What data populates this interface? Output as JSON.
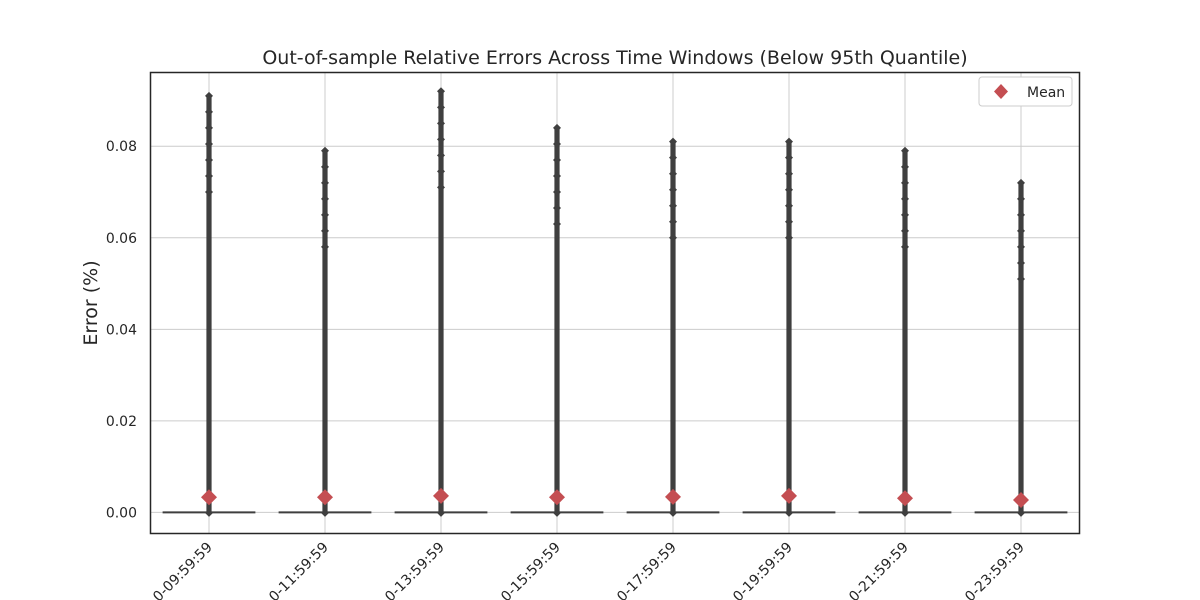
{
  "chart_data": {
    "type": "box",
    "title": "Out-of-sample Relative Errors Across Time Windows (Below 95th Quantile)",
    "xlabel": "",
    "ylabel": "Error (%)",
    "ylim": [
      -0.0045,
      0.096
    ],
    "yticks": [
      0.0,
      0.02,
      0.04,
      0.06,
      0.08
    ],
    "ytick_labels": [
      "0.00",
      "0.02",
      "0.04",
      "0.06",
      "0.08"
    ],
    "grid": true,
    "legend": {
      "position": "top-right",
      "entries": [
        "Mean"
      ]
    },
    "colors": {
      "outlier": "#3f3f3f",
      "mean": "#c44e52",
      "box": "#3f3f3f",
      "grid": "#cccccc",
      "axes": "#262626"
    },
    "categories": [
      "0-09:59:59",
      "0-11:59:59",
      "0-13:59:59",
      "0-15:59:59",
      "0-17:59:59",
      "0-19:59:59",
      "0-21:59:59",
      "0-23:59:59"
    ],
    "groups": [
      {
        "mean": 0.0033,
        "median": 0.0,
        "q1": 0.0,
        "q3": 0.0,
        "outlier_max": 0.091
      },
      {
        "mean": 0.0033,
        "median": 0.0,
        "q1": 0.0,
        "q3": 0.0,
        "outlier_max": 0.079
      },
      {
        "mean": 0.0036,
        "median": 0.0,
        "q1": 0.0,
        "q3": 0.0,
        "outlier_max": 0.092
      },
      {
        "mean": 0.0033,
        "median": 0.0,
        "q1": 0.0,
        "q3": 0.0,
        "outlier_max": 0.084
      },
      {
        "mean": 0.0034,
        "median": 0.0,
        "q1": 0.0,
        "q3": 0.0,
        "outlier_max": 0.081
      },
      {
        "mean": 0.0036,
        "median": 0.0,
        "q1": 0.0,
        "q3": 0.0,
        "outlier_max": 0.081
      },
      {
        "mean": 0.0031,
        "median": 0.0,
        "q1": 0.0,
        "q3": 0.0,
        "outlier_max": 0.079
      },
      {
        "mean": 0.0027,
        "median": 0.0,
        "q1": 0.0,
        "q3": 0.0,
        "outlier_max": 0.072
      }
    ]
  }
}
